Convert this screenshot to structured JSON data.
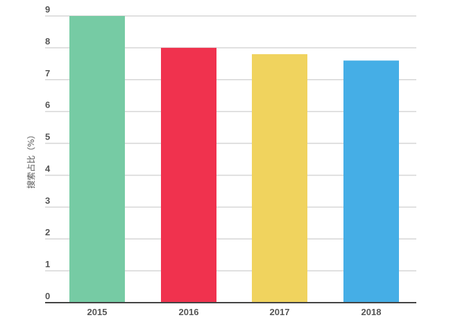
{
  "chart_data": {
    "type": "bar",
    "categories": [
      "2015",
      "2016",
      "2017",
      "2018"
    ],
    "values": [
      9,
      8,
      7.8,
      7.6
    ],
    "colors": [
      "#76CBA4",
      "#F0324E",
      "#F0D35E",
      "#45AEE6"
    ],
    "title": "",
    "xlabel": "",
    "ylabel": "搜索占比（%）",
    "ylim": [
      0,
      9
    ],
    "yticks": [
      "0",
      "1",
      "2",
      "3",
      "4",
      "5",
      "6",
      "7",
      "8",
      "9"
    ],
    "grid": true
  }
}
